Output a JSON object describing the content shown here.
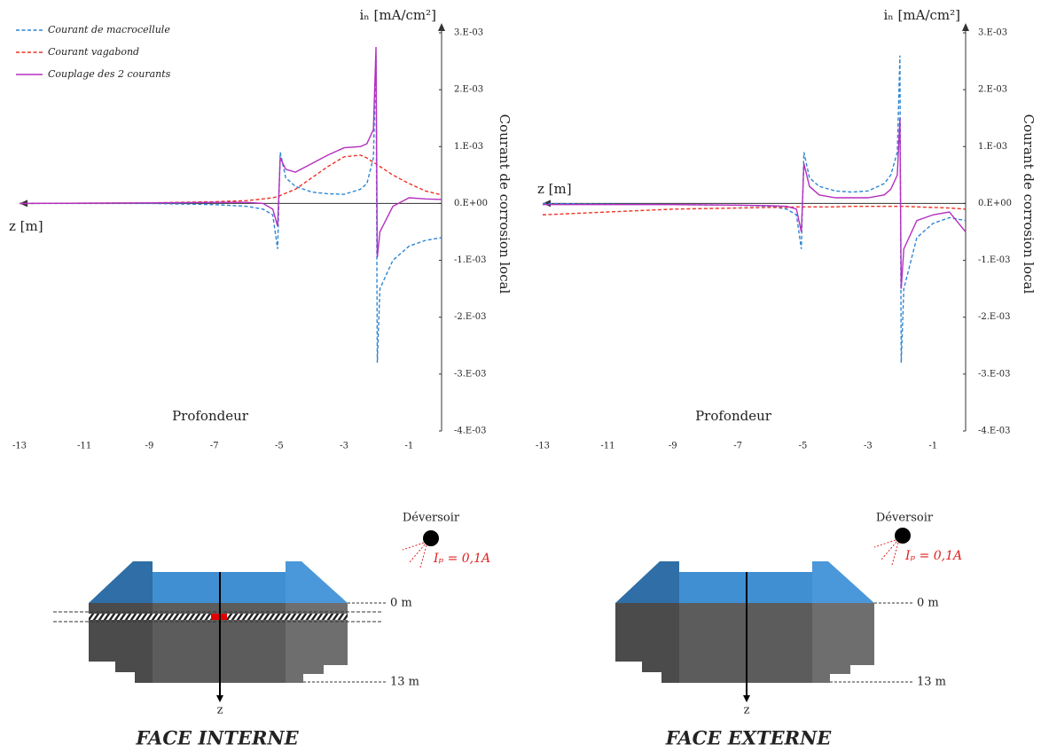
{
  "chart_data": [
    {
      "type": "line",
      "title": "iₙ [mA/cm²]",
      "y_label": "Courant de corrosion local",
      "x_label": "Profondeur",
      "x_axis_name": "z [m]",
      "legend": "upper left",
      "xlim": [
        -13,
        0
      ],
      "ylim": [
        -0.004,
        0.003
      ],
      "xticks": [
        -13,
        -11,
        -9,
        -7,
        -5,
        -3,
        -1
      ],
      "yticks": [
        {
          "value": -0.004,
          "label": "-4.E-03"
        },
        {
          "value": -0.003,
          "label": "-3.E-03"
        },
        {
          "value": -0.002,
          "label": "-2.E-03"
        },
        {
          "value": -0.001,
          "label": "-1.E-03"
        },
        {
          "value": 0,
          "label": "0.E+00"
        },
        {
          "value": 0.001,
          "label": "1.E-03"
        },
        {
          "value": 0.002,
          "label": "2.E-03"
        },
        {
          "value": 0.003,
          "label": "3.E-03"
        }
      ],
      "x": [
        -13,
        -9,
        -7,
        -6,
        -5.5,
        -5.2,
        -5.05,
        -4.97,
        -4.8,
        -4.5,
        -4,
        -3.5,
        -3,
        -2.5,
        -2.3,
        -2.1,
        -2.02,
        -1.98,
        -1.9,
        -1.5,
        -1,
        -0.5,
        0
      ],
      "series": [
        {
          "name": "Courant de macrocellule",
          "color": "#2e86d4",
          "style": "dashed",
          "values": [
            0,
            0,
            -2e-05,
            -5e-05,
            -0.0001,
            -0.0002,
            -0.0008,
            0.0009,
            0.00045,
            0.0003,
            0.0002,
            0.00017,
            0.00016,
            0.00025,
            0.00035,
            0.0008,
            0.0026,
            -0.0028,
            -0.0015,
            -0.001,
            -0.00075,
            -0.00065,
            -0.0006
          ]
        },
        {
          "name": "Courant vagabond",
          "color": "#ee3124",
          "style": "dashed",
          "values": [
            0,
            1e-05,
            3e-05,
            5e-05,
            8e-05,
            0.0001,
            0.00012,
            0.00014,
            0.00018,
            0.00025,
            0.00045,
            0.00065,
            0.00082,
            0.00085,
            0.0008,
            0.00072,
            0.0007,
            0.00068,
            0.00065,
            0.0005,
            0.00035,
            0.00022,
            0.00015
          ]
        },
        {
          "name": "Couplage des 2 courants",
          "color": "#b52fc0",
          "style": "solid",
          "values": [
            0,
            1e-05,
            2e-05,
            2e-05,
            0,
            -0.0001,
            -0.0004,
            0.0008,
            0.0006,
            0.00055,
            0.0007,
            0.00085,
            0.00098,
            0.001,
            0.00105,
            0.0013,
            0.00275,
            -0.00095,
            -0.0005,
            -5e-05,
            0.0001,
            8e-05,
            7e-05
          ]
        }
      ]
    },
    {
      "type": "line",
      "title": "iₙ [mA/cm²]",
      "y_label": "Courant de corrosion local",
      "x_label": "Profondeur",
      "x_axis_name": "z [m]",
      "xlim": [
        -13,
        0
      ],
      "ylim": [
        -0.004,
        0.003
      ],
      "xticks": [
        -13,
        -11,
        -9,
        -7,
        -5,
        -3,
        -1
      ],
      "yticks": [
        {
          "value": -0.004,
          "label": "-4.E-03"
        },
        {
          "value": -0.003,
          "label": "-3.E-03"
        },
        {
          "value": -0.002,
          "label": "-2.E-03"
        },
        {
          "value": -0.001,
          "label": "-1.E-03"
        },
        {
          "value": 0,
          "label": "0.E+00"
        },
        {
          "value": 0.001,
          "label": "1.E-03"
        },
        {
          "value": 0.002,
          "label": "2.E-03"
        },
        {
          "value": 0.003,
          "label": "3.E-03"
        }
      ],
      "x": [
        -13,
        -9,
        -7,
        -6,
        -5.5,
        -5.2,
        -5.05,
        -4.97,
        -4.8,
        -4.5,
        -4,
        -3.5,
        -3,
        -2.5,
        -2.3,
        -2.1,
        -2.02,
        -1.98,
        -1.9,
        -1.5,
        -1,
        -0.5,
        0
      ],
      "series": [
        {
          "color": "#2e86d4",
          "style": "dashed",
          "values": [
            0,
            -2e-05,
            -3e-05,
            -5e-05,
            -0.0001,
            -0.0002,
            -0.0008,
            0.0009,
            0.00045,
            0.0003,
            0.00022,
            0.0002,
            0.00022,
            0.00035,
            0.0005,
            0.0009,
            0.0026,
            -0.0028,
            -0.0015,
            -0.0006,
            -0.00035,
            -0.00025,
            -0.0003
          ]
        },
        {
          "color": "#ee3124",
          "style": "dashed",
          "values": [
            -0.0002,
            -0.0001,
            -8e-05,
            -7e-05,
            -7e-05,
            -6e-05,
            -6e-05,
            -6e-05,
            -6e-05,
            -6e-05,
            -6e-05,
            -5e-05,
            -5e-05,
            -5e-05,
            -5e-05,
            -5e-05,
            -5e-05,
            -5e-05,
            -5e-05,
            -6e-05,
            -7e-05,
            -8e-05,
            -0.0001
          ]
        },
        {
          "color": "#b52fc0",
          "style": "solid",
          "values": [
            -2e-05,
            -2e-05,
            -3e-05,
            -4e-05,
            -5e-05,
            -0.0001,
            -0.0005,
            0.0007,
            0.0003,
            0.00015,
            0.0001,
            0.0001,
            0.0001,
            0.00015,
            0.00025,
            0.0005,
            0.0015,
            -0.0015,
            -0.0008,
            -0.0003,
            -0.0002,
            -0.00015,
            -0.0005
          ]
        }
      ]
    }
  ],
  "diagrams": [
    {
      "source": "Déversoir",
      "current": "Iₚ = 0,1A",
      "top_level": "0 m",
      "bottom_level": "13 m",
      "axis": "z",
      "caption": "FACE INTERNE"
    },
    {
      "source": "Déversoir",
      "current": "Iₚ = 0,1A",
      "top_level": "0 m",
      "bottom_level": "13 m",
      "axis": "z",
      "caption": "FACE EXTERNE"
    }
  ]
}
